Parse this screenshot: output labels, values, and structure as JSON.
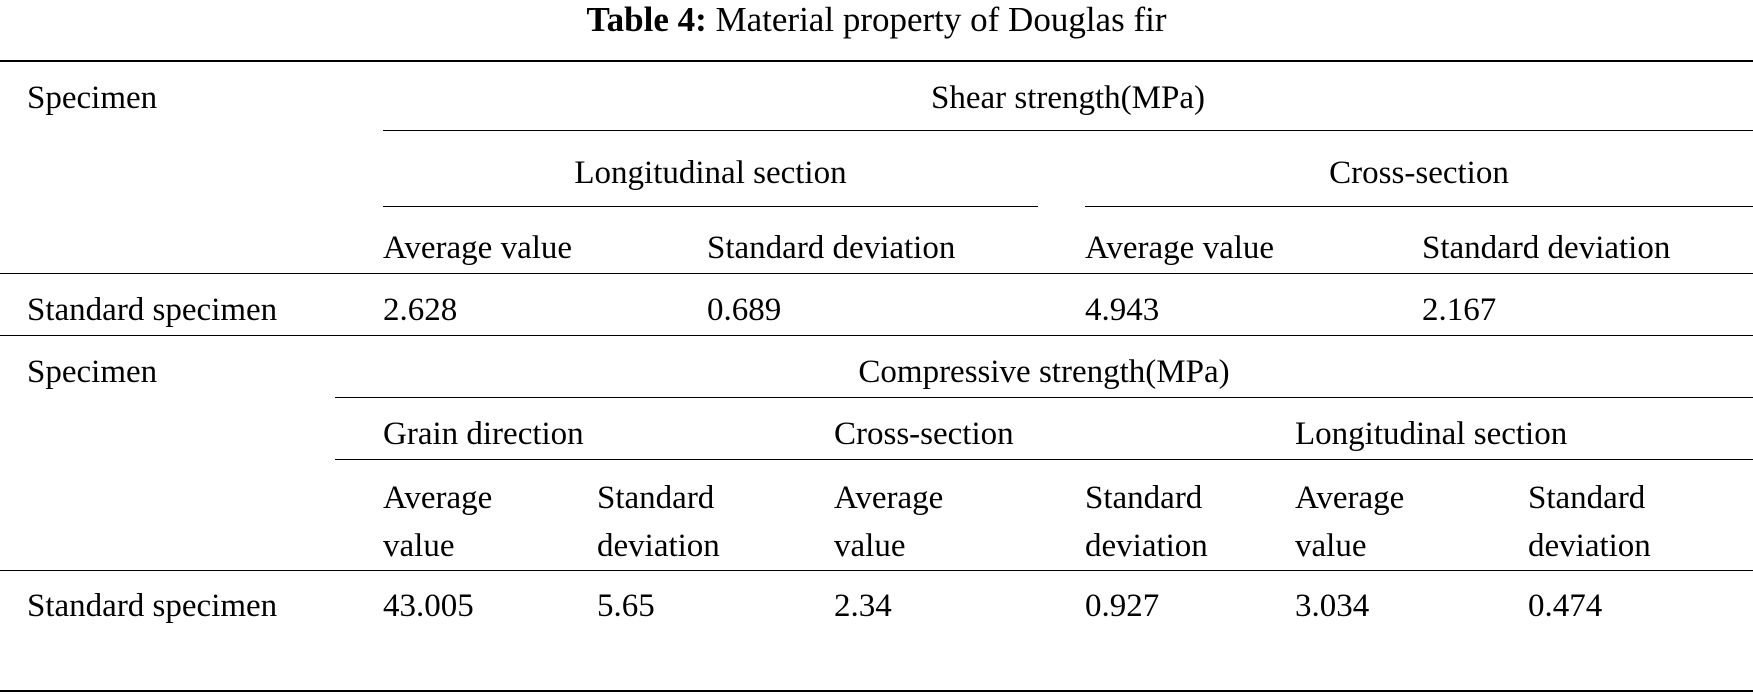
{
  "caption": {
    "label": "Table 4:",
    "text": "Material property of Douglas fir"
  },
  "shear": {
    "specimen_header": "Specimen",
    "group_header": "Shear strength(MPa)",
    "sections": [
      "Longitudinal section",
      "Cross-section"
    ],
    "columns": [
      "Average value",
      "Standard deviation",
      "Average value",
      "Standard deviation"
    ],
    "row": {
      "label": "Standard specimen",
      "values": [
        "2.628",
        "0.689",
        "4.943",
        "2.167"
      ]
    }
  },
  "compressive": {
    "specimen_header": "Specimen",
    "group_header": "Compressive strength(MPa)",
    "sections": [
      "Grain direction",
      "Cross-section",
      "Longitudinal section"
    ],
    "columns": [
      "Average value",
      "Standard deviation",
      "Average value",
      "Standard deviation",
      "Average value",
      "Standard deviation"
    ],
    "row": {
      "label": "Standard specimen",
      "values": [
        "43.005",
        "5.65",
        "2.34",
        "0.927",
        "3.034",
        "0.474"
      ]
    }
  }
}
